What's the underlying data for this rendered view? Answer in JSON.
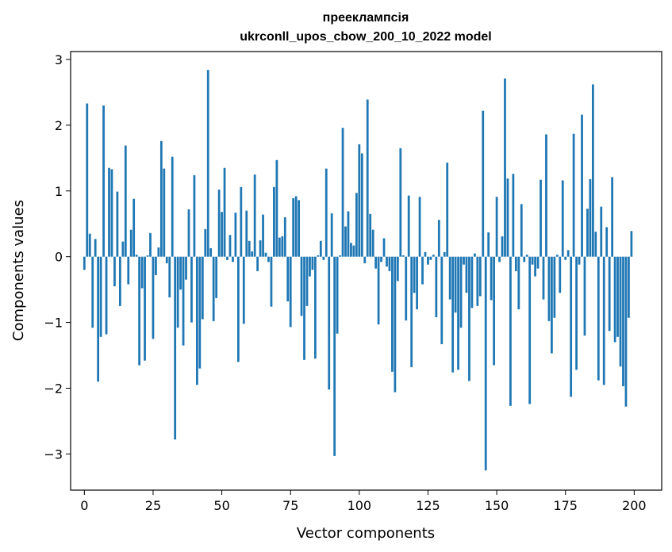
{
  "chart_data": {
    "type": "bar",
    "title_line1": "прееклампсія",
    "title_line2": "ukrconll_upos_cbow_200_10_2022 model",
    "xlabel": "Vector components",
    "ylabel": "Components values",
    "xlim": [
      -5,
      210
    ],
    "ylim": [
      -3.55,
      3.12
    ],
    "xticks": [
      0,
      25,
      50,
      75,
      100,
      125,
      150,
      175,
      200
    ],
    "xtick_labels": [
      "0",
      "25",
      "50",
      "75",
      "100",
      "125",
      "150",
      "175",
      "200"
    ],
    "yticks": [
      -3,
      -2,
      -1,
      0,
      1,
      2,
      3
    ],
    "ytick_labels": [
      "−3",
      "−2",
      "−1",
      "0",
      "1",
      "2",
      "3"
    ],
    "grid": false,
    "bar_color": "#1f77b4",
    "values": [
      -0.2,
      2.33,
      0.35,
      -1.08,
      0.27,
      -1.9,
      -1.22,
      2.3,
      -1.18,
      1.35,
      1.33,
      -0.45,
      0.99,
      -0.75,
      0.23,
      1.69,
      -0.42,
      0.41,
      0.88,
      0.03,
      -1.65,
      -0.48,
      -1.58,
      0.02,
      0.36,
      -1.25,
      -0.28,
      0.14,
      1.76,
      1.34,
      -0.1,
      -0.62,
      1.52,
      -2.78,
      -1.08,
      -0.5,
      -1.35,
      -0.35,
      0.72,
      -1.0,
      1.24,
      -1.95,
      -1.7,
      -0.95,
      0.42,
      2.84,
      0.13,
      -0.98,
      -0.63,
      1.02,
      0.68,
      1.35,
      -0.05,
      0.33,
      -0.08,
      0.67,
      -1.6,
      1.06,
      -1.02,
      0.7,
      0.24,
      0.08,
      1.25,
      -0.22,
      0.25,
      0.64,
      0.06,
      -0.08,
      -0.76,
      1.06,
      1.47,
      0.29,
      0.31,
      0.6,
      -0.68,
      -1.07,
      0.89,
      0.92,
      0.86,
      -0.9,
      -1.57,
      -0.75,
      -0.3,
      -0.2,
      -1.55,
      0.02,
      0.24,
      -0.05,
      1.34,
      -2.02,
      0.66,
      -3.03,
      -1.17,
      0.02,
      1.96,
      0.46,
      0.69,
      0.21,
      0.17,
      0.97,
      1.71,
      1.57,
      -0.1,
      2.39,
      0.65,
      0.41,
      -0.18,
      -1.03,
      -0.08,
      0.28,
      -0.15,
      -0.22,
      -1.75,
      -2.06,
      -0.37,
      1.65,
      0.02,
      -0.97,
      0.93,
      -1.68,
      -0.55,
      -0.8,
      0.91,
      -0.42,
      0.07,
      -0.12,
      -0.05,
      0.03,
      -0.92,
      0.56,
      -1.33,
      0.07,
      1.43,
      -0.65,
      -1.76,
      -0.85,
      -1.72,
      -1.08,
      -0.12,
      -0.55,
      -1.89,
      -0.78,
      0.05,
      -0.75,
      -0.6,
      2.22,
      -3.25,
      0.37,
      -0.66,
      -1.65,
      0.91,
      -0.08,
      0.31,
      2.71,
      1.19,
      -2.27,
      1.26,
      -0.22,
      -0.8,
      0.8,
      -0.08,
      0.03,
      -2.24,
      -0.12,
      -0.3,
      -0.18,
      1.17,
      -0.65,
      1.86,
      -0.98,
      -1.47,
      -0.93,
      0.03,
      -0.55,
      1.16,
      -0.05,
      0.1,
      -2.13,
      1.87,
      -1.72,
      -0.12,
      2.16,
      -1.2,
      0.73,
      1.18,
      2.62,
      0.38,
      -1.88,
      0.76,
      -1.95,
      0.45,
      -1.13,
      1.21,
      -1.3,
      -1.22,
      -1.67,
      -1.97,
      -2.28,
      -0.93,
      0.39
    ]
  }
}
